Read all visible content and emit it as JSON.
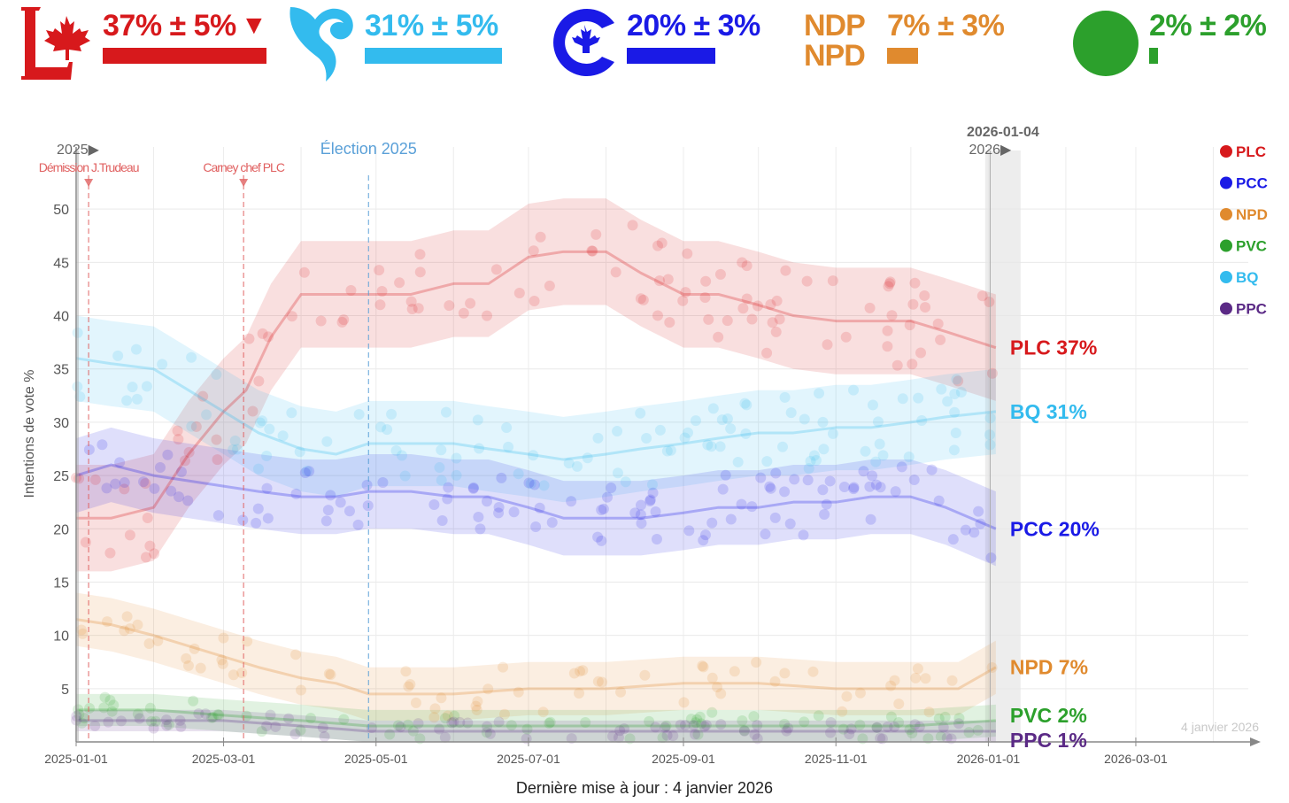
{
  "header": {
    "parties": [
      {
        "id": "plc",
        "logo": "liberal-maple-logo",
        "estimate": "37% ± 5%",
        "trend": "▼",
        "bar_value": 37,
        "color": "#d7191c"
      },
      {
        "id": "bq",
        "logo": "bloc-quebecois-logo",
        "estimate": "31% ± 5%",
        "trend": "",
        "bar_value": 31,
        "color": "#33bbee"
      },
      {
        "id": "pcc",
        "logo": "conservative-c-logo",
        "estimate": "20% ± 3%",
        "trend": "",
        "bar_value": 20,
        "color": "#1a1ae6"
      },
      {
        "id": "npd",
        "logo": "ndp-npd-logo",
        "logo_text_1": "NDP",
        "logo_text_2": "NPD",
        "estimate": "7% ± 3%",
        "trend": "",
        "bar_value": 7,
        "color": "#e08a2e"
      },
      {
        "id": "pvc",
        "logo": "green-circle-logo",
        "estimate": "2% ± 2%",
        "trend": "",
        "bar_value": 2,
        "color": "#2ca02c"
      }
    ]
  },
  "chart_data": {
    "type": "line",
    "ylabel": "Intentions de vote %",
    "xlabel": "",
    "ylim": [
      0,
      55
    ],
    "yticks": [
      5,
      10,
      15,
      20,
      25,
      30,
      35,
      40,
      45,
      50
    ],
    "xlim": [
      "2025-01-01",
      "2026-04-15"
    ],
    "xticks": [
      "2025-01-01",
      "2025-03-01",
      "2025-05-01",
      "2025-07-01",
      "2025-09-01",
      "2025-11-01",
      "2026-01-01",
      "2026-03-01"
    ],
    "grid": true,
    "events": [
      {
        "date": "2025-01-06",
        "label": "Démission J.Trudeau",
        "color": "#e06060"
      },
      {
        "date": "2025-03-09",
        "label": "Carney chef PLC",
        "color": "#e06060"
      },
      {
        "date": "2025-04-28",
        "label": "Élection 2025",
        "color": "#5aa0d8"
      }
    ],
    "year_markers": [
      {
        "date": "2025-01-01",
        "label": "2025▶"
      },
      {
        "date": "2026-01-01",
        "label": "2026▶"
      }
    ],
    "current_date": {
      "date": "2026-01-04",
      "label": "2026-01-04"
    },
    "watermark": "4 janvier 2026",
    "legend_position": "top-right",
    "legend": [
      "PLC",
      "PCC",
      "NPD",
      "PVC",
      "BQ",
      "PPC"
    ],
    "series": [
      {
        "name": "PLC",
        "label": "PLC 37%",
        "color": "#d7191c",
        "band": 5,
        "x": [
          "2025-01-01",
          "2025-01-15",
          "2025-02-01",
          "2025-02-15",
          "2025-03-01",
          "2025-03-10",
          "2025-03-20",
          "2025-04-01",
          "2025-04-10",
          "2025-04-20",
          "2025-04-28",
          "2025-05-15",
          "2025-06-01",
          "2025-06-15",
          "2025-07-01",
          "2025-07-15",
          "2025-08-01",
          "2025-08-15",
          "2025-09-01",
          "2025-09-15",
          "2025-10-01",
          "2025-10-15",
          "2025-11-01",
          "2025-11-15",
          "2025-12-01",
          "2025-12-15",
          "2026-01-04"
        ],
        "y": [
          21,
          21,
          22,
          27,
          31,
          33,
          38,
          42,
          42,
          42,
          42,
          42,
          43,
          43,
          45.5,
          46,
          46,
          44,
          42,
          42,
          41,
          40,
          39.5,
          39.5,
          39.5,
          38.5,
          37
        ]
      },
      {
        "name": "BQ",
        "label": "BQ 31%",
        "color": "#33bbee",
        "band": 4,
        "x": [
          "2025-01-01",
          "2025-01-15",
          "2025-02-01",
          "2025-02-15",
          "2025-03-01",
          "2025-03-15",
          "2025-04-01",
          "2025-04-15",
          "2025-04-28",
          "2025-05-15",
          "2025-06-01",
          "2025-06-15",
          "2025-07-01",
          "2025-07-15",
          "2025-08-01",
          "2025-08-15",
          "2025-09-01",
          "2025-09-15",
          "2025-10-01",
          "2025-10-15",
          "2025-11-01",
          "2025-11-15",
          "2025-12-01",
          "2025-12-15",
          "2026-01-04"
        ],
        "y": [
          36,
          35.5,
          35,
          33,
          31,
          29,
          27.5,
          27,
          28,
          28,
          28,
          27.5,
          27,
          26.5,
          27,
          27.5,
          28,
          28.5,
          29,
          29,
          29.5,
          29.5,
          30,
          30.5,
          31
        ]
      },
      {
        "name": "PCC",
        "label": "PCC 20%",
        "color": "#1a1ae6",
        "band": 3.5,
        "x": [
          "2025-01-01",
          "2025-01-15",
          "2025-02-01",
          "2025-02-15",
          "2025-03-01",
          "2025-03-15",
          "2025-04-01",
          "2025-04-15",
          "2025-04-28",
          "2025-05-15",
          "2025-06-01",
          "2025-06-15",
          "2025-07-01",
          "2025-07-15",
          "2025-08-01",
          "2025-08-15",
          "2025-09-01",
          "2025-09-15",
          "2025-10-01",
          "2025-10-15",
          "2025-11-01",
          "2025-11-15",
          "2025-12-01",
          "2025-12-15",
          "2026-01-04"
        ],
        "y": [
          25,
          26,
          25,
          24.5,
          24,
          23.5,
          23,
          23,
          23.5,
          23.5,
          23,
          23,
          22,
          21,
          21,
          21,
          21.5,
          22,
          22,
          22.5,
          22.5,
          23,
          23,
          22,
          20
        ]
      },
      {
        "name": "NPD",
        "label": "NPD 7%",
        "color": "#e08a2e",
        "band": 2.5,
        "x": [
          "2025-01-01",
          "2025-01-15",
          "2025-02-01",
          "2025-02-15",
          "2025-03-01",
          "2025-03-15",
          "2025-04-01",
          "2025-04-15",
          "2025-04-28",
          "2025-05-15",
          "2025-06-01",
          "2025-07-01",
          "2025-08-01",
          "2025-09-01",
          "2025-10-01",
          "2025-11-01",
          "2025-12-01",
          "2025-12-20",
          "2026-01-04"
        ],
        "y": [
          11.5,
          11,
          10,
          9,
          8,
          7,
          6,
          5.5,
          4.5,
          4.5,
          4.5,
          5,
          5,
          5.5,
          5.5,
          5,
          5,
          5,
          7
        ]
      },
      {
        "name": "PVC",
        "label": "PVC 2%",
        "color": "#2ca02c",
        "band": 1.5,
        "x": [
          "2025-01-01",
          "2025-02-01",
          "2025-03-01",
          "2025-04-01",
          "2025-04-28",
          "2025-06-01",
          "2025-08-01",
          "2025-10-01",
          "2025-12-01",
          "2026-01-04"
        ],
        "y": [
          3,
          3,
          2.5,
          2,
          1.5,
          1.5,
          1.5,
          1.5,
          1.5,
          2
        ]
      },
      {
        "name": "PPC",
        "label": "PPC 1%",
        "color": "#5b2a86",
        "band": 1,
        "x": [
          "2025-01-01",
          "2025-02-01",
          "2025-03-01",
          "2025-04-01",
          "2025-04-28",
          "2025-06-01",
          "2025-08-01",
          "2025-10-01",
          "2025-12-01",
          "2026-01-04"
        ],
        "y": [
          2,
          2,
          2,
          1.5,
          1,
          1,
          1,
          1,
          1,
          1
        ]
      }
    ]
  },
  "footer": {
    "text": "Dernière mise à jour : 4 janvier 2026"
  }
}
